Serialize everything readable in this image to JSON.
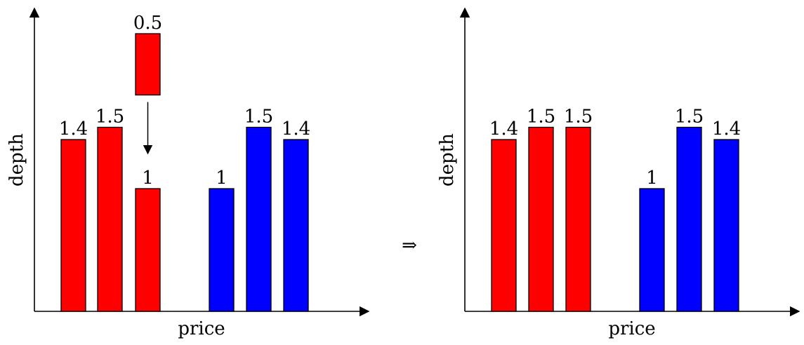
{
  "arrow_symbol": "⇒",
  "colors": {
    "bid": "#ff0000",
    "ask": "#0000ff"
  },
  "chart_data": [
    {
      "type": "bar",
      "xlabel": "price",
      "ylabel": "depth",
      "ylim": [
        0,
        2.3
      ],
      "bars": [
        {
          "side": "bid",
          "value": 1.4,
          "label": "1.4"
        },
        {
          "side": "bid",
          "value": 1.5,
          "label": "1.5"
        },
        {
          "side": "bid",
          "value": 1,
          "label": "1"
        },
        {
          "side": "ask",
          "value": 1,
          "label": "1"
        },
        {
          "side": "ask",
          "value": 1.5,
          "label": "1.5"
        },
        {
          "side": "ask",
          "value": 1.4,
          "label": "1.4"
        }
      ],
      "incoming_order": {
        "side": "bid",
        "value": 0.5,
        "label": "0.5",
        "target_index": 2
      }
    },
    {
      "type": "bar",
      "xlabel": "price",
      "ylabel": "depth",
      "ylim": [
        0,
        2.3
      ],
      "bars": [
        {
          "side": "bid",
          "value": 1.4,
          "label": "1.4"
        },
        {
          "side": "bid",
          "value": 1.5,
          "label": "1.5"
        },
        {
          "side": "bid",
          "value": 1.5,
          "label": "1.5"
        },
        {
          "side": "ask",
          "value": 1,
          "label": "1"
        },
        {
          "side": "ask",
          "value": 1.5,
          "label": "1.5"
        },
        {
          "side": "ask",
          "value": 1.4,
          "label": "1.4"
        }
      ]
    }
  ]
}
